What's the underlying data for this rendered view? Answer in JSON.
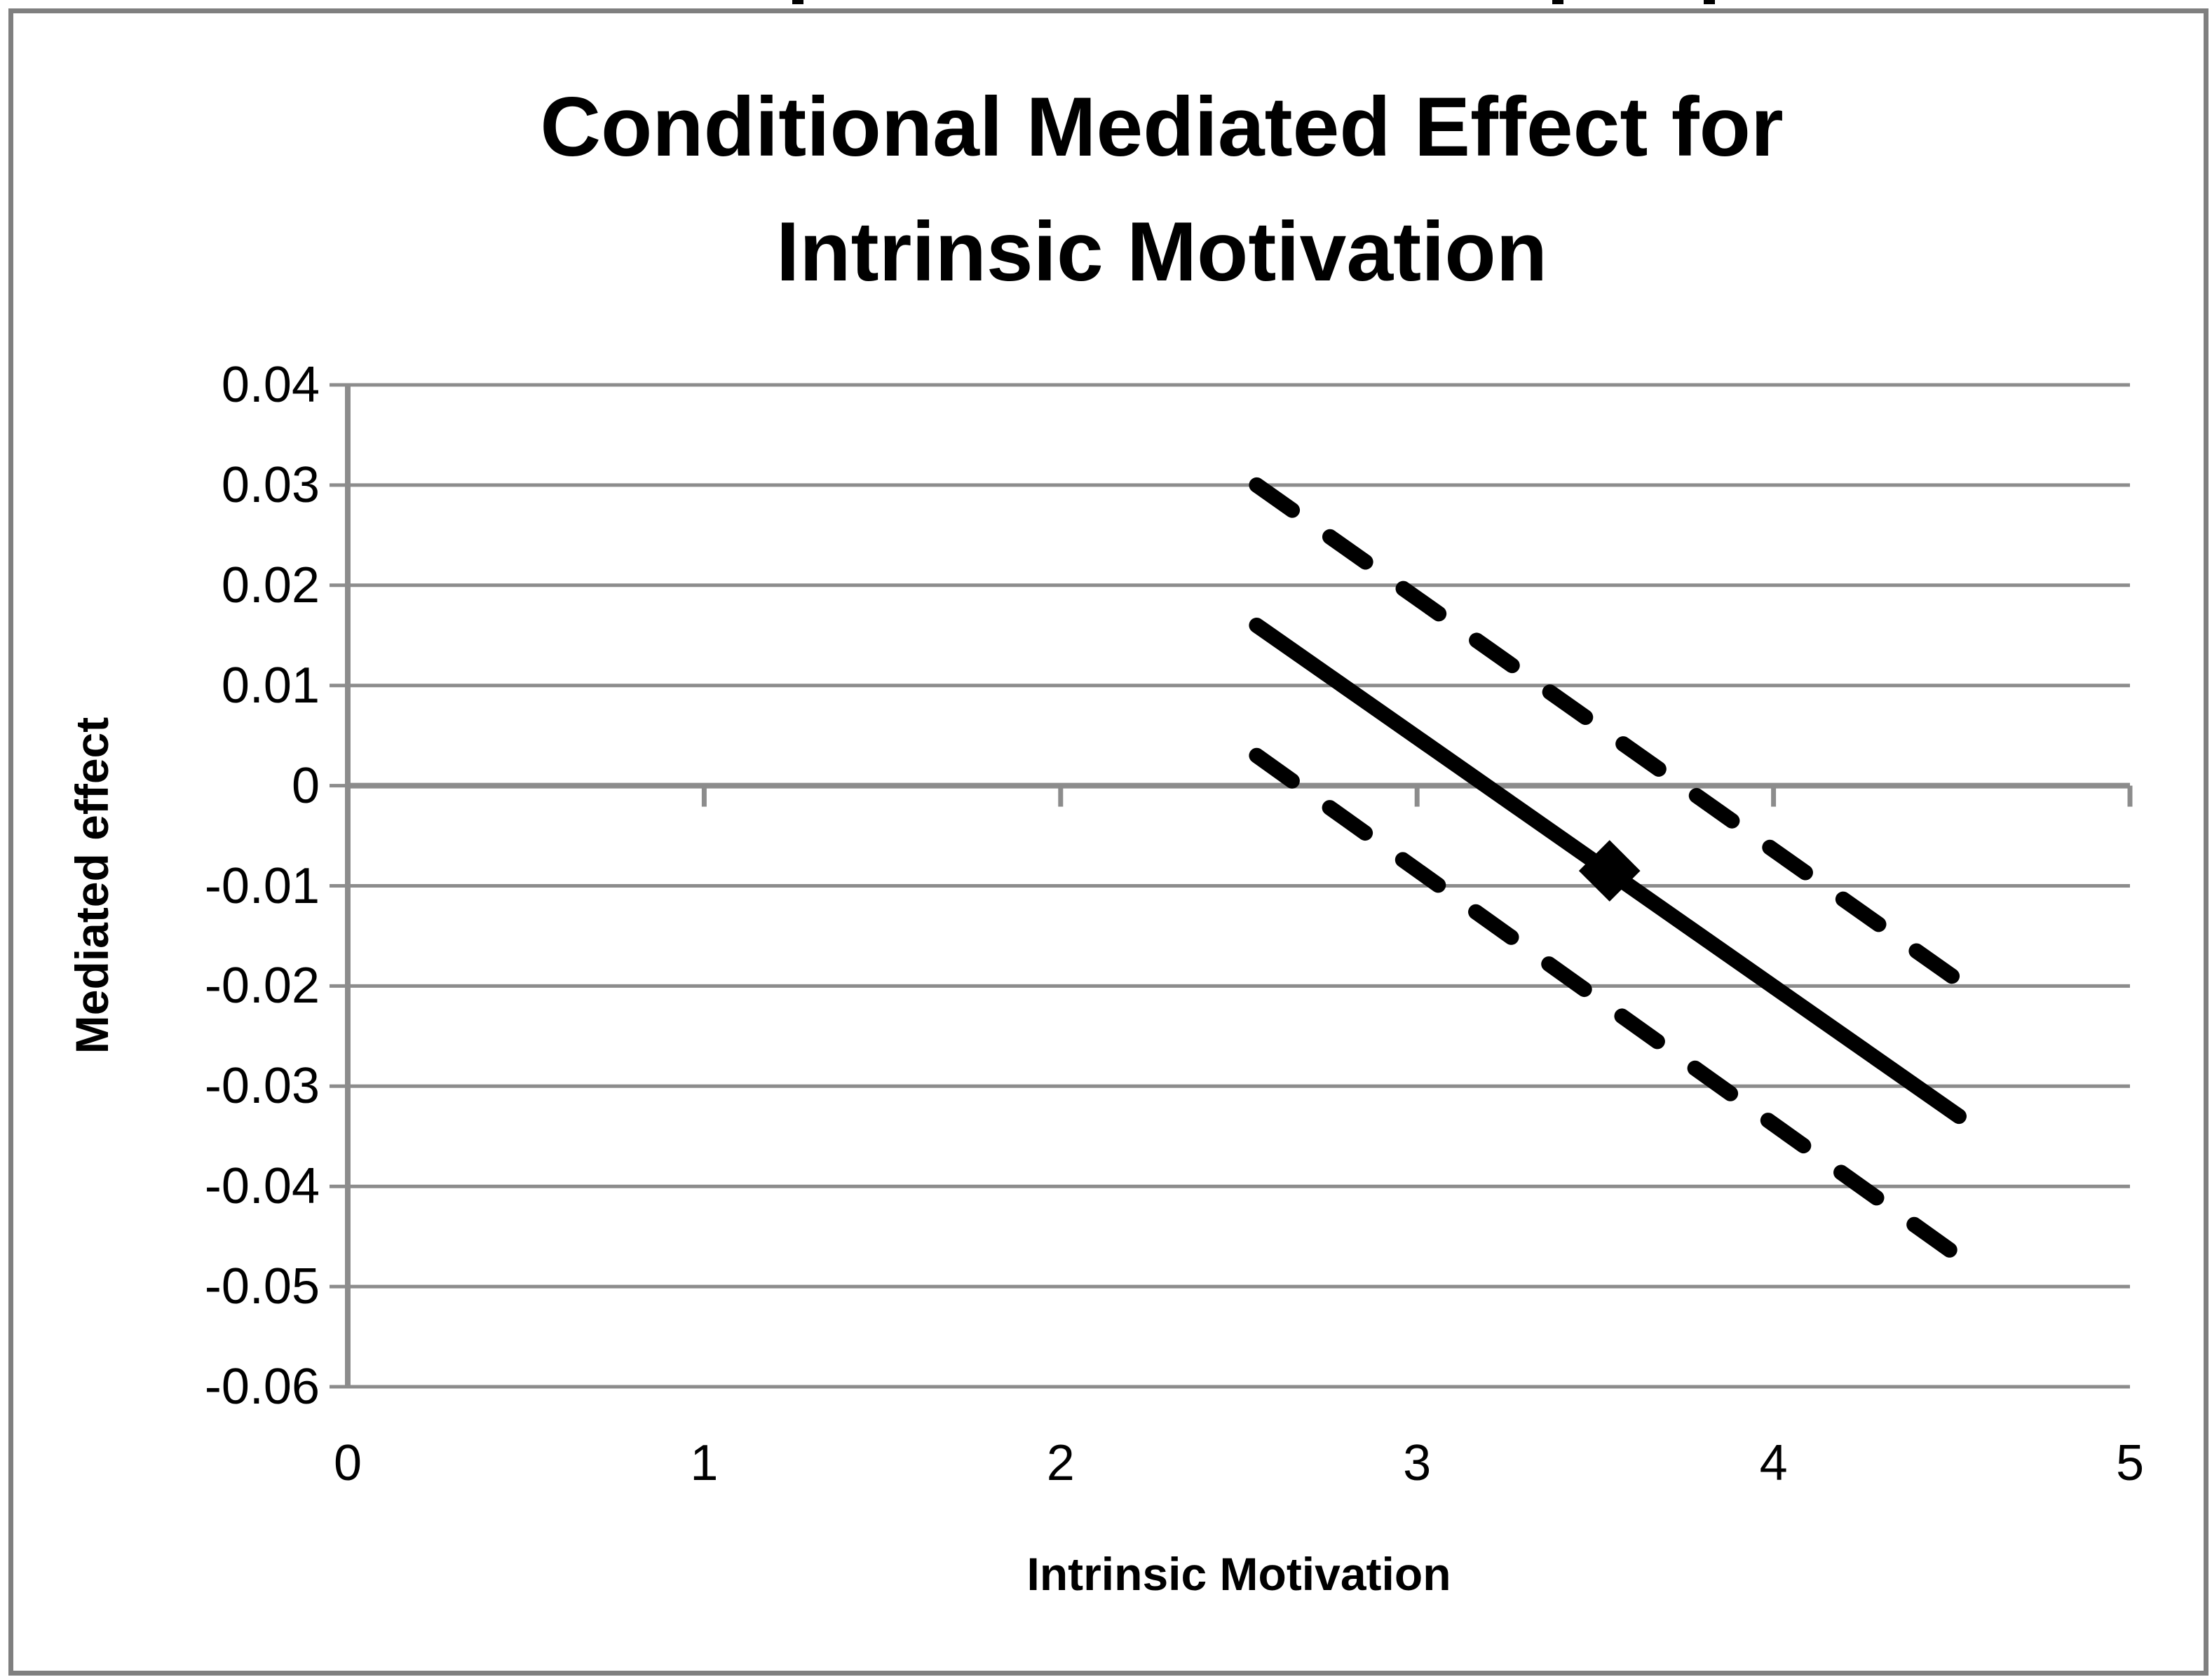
{
  "chart_data": {
    "type": "line",
    "title": "Conditional Mediated Effect for Intrinsic Motivation",
    "title_lines": [
      "Conditional Mediated Effect for",
      "Intrinsic Motivation"
    ],
    "xlabel": "Intrinsic Motivation",
    "ylabel": "Mediated effect",
    "xlim": [
      0,
      5
    ],
    "ylim": [
      -0.06,
      0.04
    ],
    "x_ticks": [
      0,
      1,
      2,
      3,
      4,
      5
    ],
    "x_tick_labels": [
      "0",
      "1",
      "2",
      "3",
      "4",
      "5"
    ],
    "y_ticks": [
      0.04,
      0.03,
      0.02,
      0.01,
      0,
      -0.01,
      -0.02,
      -0.03,
      -0.04,
      -0.05,
      -0.06
    ],
    "y_tick_labels": [
      "0.04",
      "0.03",
      "0.02",
      "0.01",
      "0",
      "-0.01",
      "-0.02",
      "-0.03",
      "-0.04",
      "-0.05",
      "-0.06"
    ],
    "grid": "horizontal",
    "legend": "none",
    "series": [
      {
        "name": "mediated-effect-line",
        "style": "solid",
        "points": [
          [
            2.55,
            0.016
          ],
          [
            4.52,
            -0.033
          ]
        ],
        "marker": {
          "shape": "diamond",
          "x": 3.54,
          "y": -0.0085
        }
      },
      {
        "name": "upper-confidence-band-line",
        "style": "dashed",
        "points": [
          [
            2.55,
            0.03
          ],
          [
            4.54,
            -0.02
          ]
        ]
      },
      {
        "name": "lower-confidence-band-line",
        "style": "dashed",
        "points": [
          [
            2.55,
            0.003
          ],
          [
            4.52,
            -0.047
          ]
        ]
      }
    ],
    "colors": {
      "line": "#000000",
      "grid": "#8C8C8C",
      "border": "#7F7F7F",
      "background": "#FFFFFF",
      "text": "#000000"
    }
  }
}
